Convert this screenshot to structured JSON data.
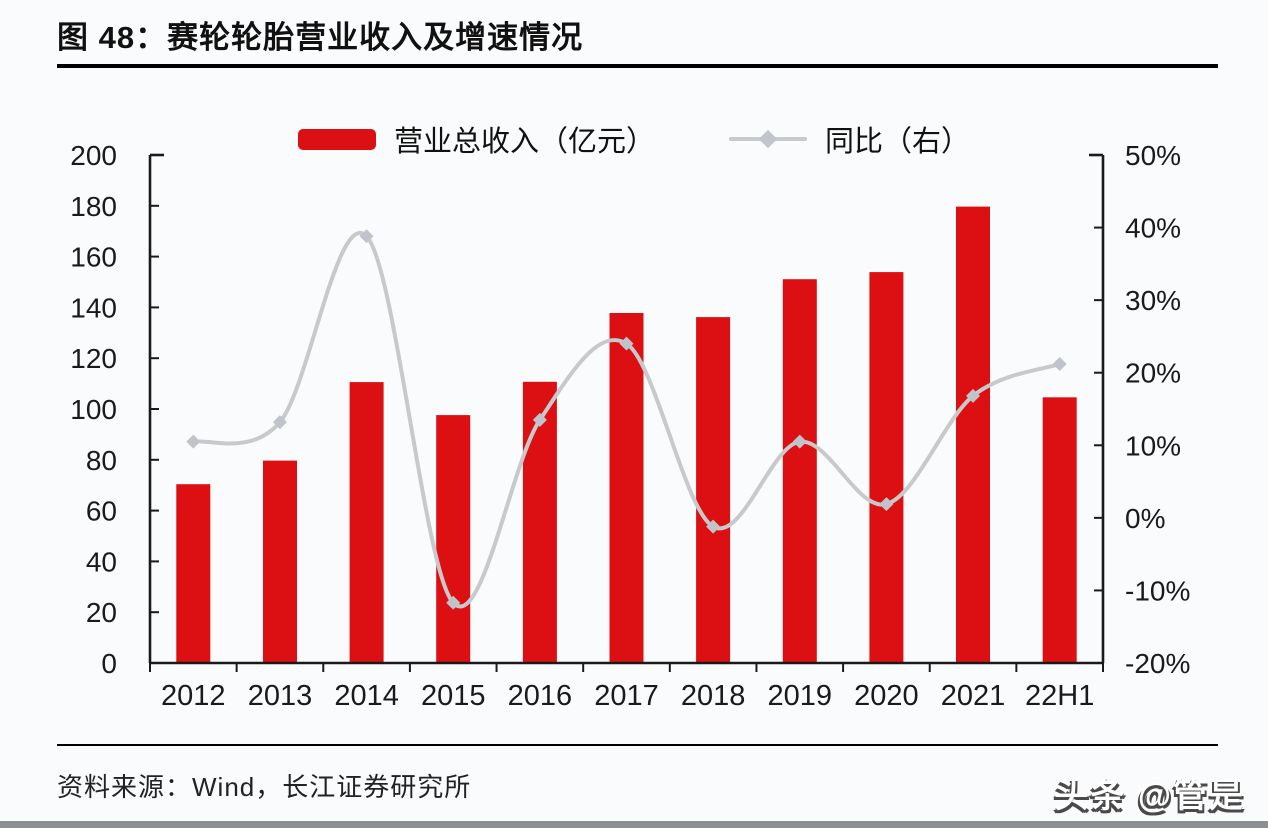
{
  "page": {
    "title": "图 48：赛轮轮胎营业收入及增速情况",
    "source": "资料来源：Wind，长江证券研究所",
    "watermark": "头条 @管是"
  },
  "legend": {
    "bar_label": "营业总收入（亿元）",
    "line_label": "同比（右）"
  },
  "colors": {
    "bar": "#dc1013",
    "line": "#c7c9cb",
    "marker": "#c0c4ca",
    "axis": "#1a1a1a"
  },
  "chart_data": {
    "type": "combo_bar_line",
    "title": "图 48：赛轮轮胎营业收入及增速情况",
    "categories": [
      "2012",
      "2013",
      "2014",
      "2015",
      "2016",
      "2017",
      "2018",
      "2019",
      "2020",
      "2021",
      "22H1"
    ],
    "series": [
      {
        "name": "营业总收入（亿元）",
        "type": "bar",
        "axis": "left",
        "color": "#dc1013",
        "values": [
          70.4,
          79.7,
          110.6,
          97.6,
          110.7,
          137.8,
          136.2,
          151.1,
          153.9,
          179.7,
          104.6
        ]
      },
      {
        "name": "同比（右）",
        "type": "line",
        "axis": "right",
        "color": "#c7c9cb",
        "marker": "diamond",
        "values": [
          10.5,
          13.2,
          38.8,
          -11.7,
          13.5,
          24.0,
          -1.2,
          10.5,
          1.9,
          16.8,
          21.2
        ]
      }
    ],
    "left_axis": {
      "min": 0,
      "max": 200,
      "step": 20,
      "tick_labels": [
        "200",
        "180",
        "160",
        "140",
        "120",
        "100",
        "80",
        "60",
        "40",
        "20",
        "0"
      ]
    },
    "right_axis": {
      "min": -20,
      "max": 50,
      "step": 10,
      "tick_labels": [
        "50%",
        "40%",
        "30%",
        "20%",
        "10%",
        "0%",
        "-10%",
        "-20%"
      ]
    },
    "legend_position": "top",
    "grid": false
  }
}
